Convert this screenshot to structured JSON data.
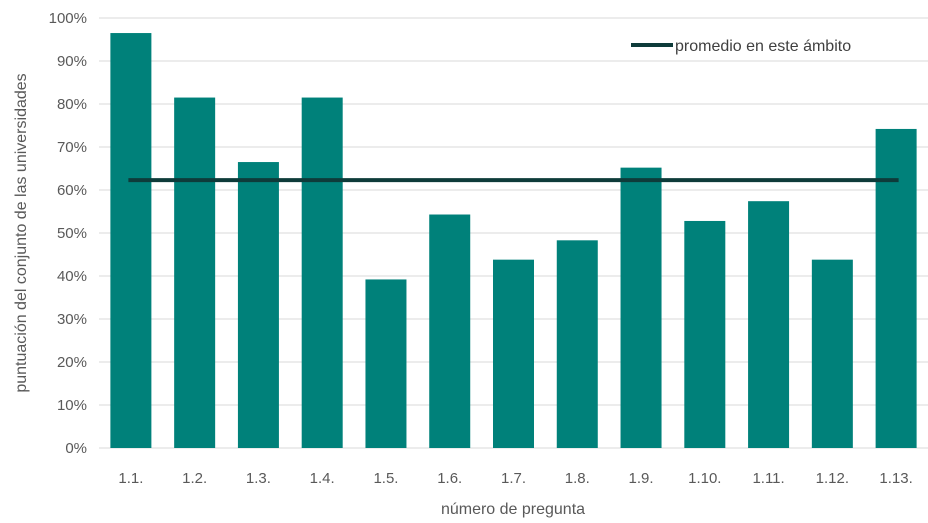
{
  "chart_data": {
    "type": "bar",
    "categories": [
      "1.1.",
      "1.2.",
      "1.3.",
      "1.4.",
      "1.5.",
      "1.6.",
      "1.7.",
      "1.8.",
      "1.9.",
      "1.10.",
      "1.11.",
      "1.12.",
      "1.13."
    ],
    "series": [
      {
        "values": [
          0.965,
          0.815,
          0.665,
          0.815,
          0.392,
          0.543,
          0.438,
          0.483,
          0.652,
          0.528,
          0.574,
          0.438,
          0.742
        ]
      },
      {
        "name": "promedio en este ámbito",
        "type": "line",
        "values": [
          0.623,
          0.623,
          0.623,
          0.623,
          0.623,
          0.623,
          0.623,
          0.623,
          0.623,
          0.623,
          0.623,
          0.623,
          0.623
        ]
      }
    ],
    "xlabel": "número de pregunta",
    "ylabel": "puntuación del conjunto de las universidades",
    "ylim": [
      0,
      1
    ],
    "yticks": [
      "0%",
      "10%",
      "20%",
      "30%",
      "40%",
      "50%",
      "60%",
      "70%",
      "80%",
      "90%",
      "100%"
    ],
    "grid": true,
    "legend_position": "top-right",
    "colors": {
      "bar": "#00817A",
      "line": "#0E3B3A",
      "grid": "#D9D9D9",
      "text": "#595959"
    }
  }
}
